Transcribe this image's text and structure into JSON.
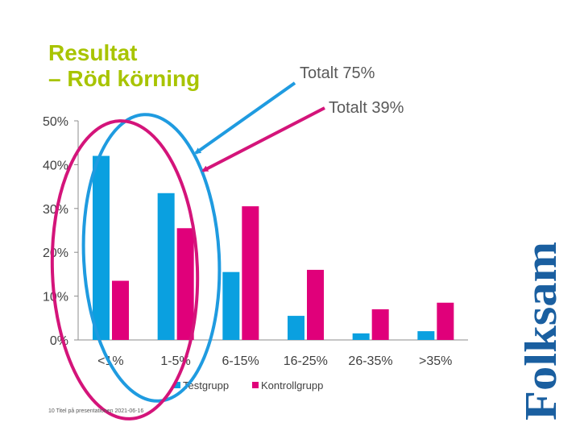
{
  "slide": {
    "title_line1": "Resultat",
    "title_line2": "– Röd körning",
    "annotation_total_test": "Totalt 75%",
    "annotation_total_control": "Totalt 39%",
    "footer": "10 Titel på presentationen 2021-06-16",
    "logo_text": "Folksam"
  },
  "colors": {
    "title": "#a8c400",
    "testgrupp": "#0aa0e0",
    "kontrollgrupp": "#e0007a",
    "blue_ellipse": "#1f9be0",
    "magenta_ellipse": "#d4147a",
    "logo": "#1a5fa0"
  },
  "chart_data": {
    "type": "bar",
    "categories": [
      "<1%",
      "1-5%",
      "6-15%",
      "16-25%",
      "26-35%",
      ">35%"
    ],
    "series": [
      {
        "name": "Testgrupp",
        "values": [
          42,
          33.5,
          15.5,
          5.5,
          1.5,
          2
        ]
      },
      {
        "name": "Kontrollgrupp",
        "values": [
          13.5,
          25.5,
          30.5,
          16,
          7,
          8.5
        ]
      }
    ],
    "yticks": [
      "0%",
      "10%",
      "20%",
      "30%",
      "40%",
      "50%"
    ],
    "ylim": [
      0,
      50
    ],
    "legend": "bottom",
    "grid": false
  }
}
